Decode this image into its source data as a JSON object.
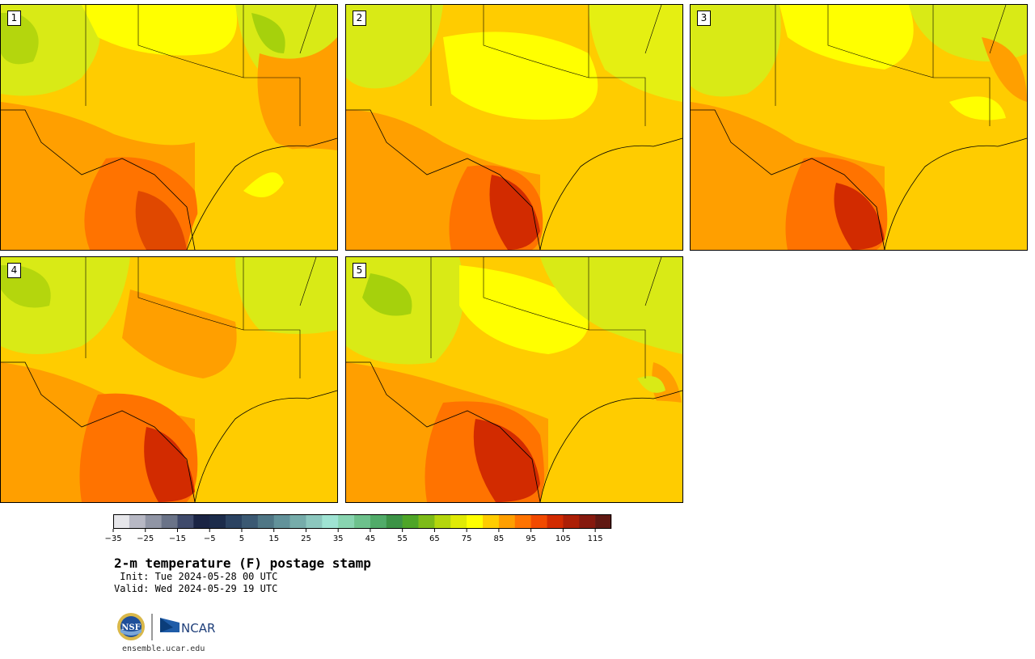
{
  "panels": [
    {
      "label": "1"
    },
    {
      "label": "2"
    },
    {
      "label": "3"
    },
    {
      "label": "4"
    },
    {
      "label": "5"
    }
  ],
  "colorbar": {
    "colors": [
      "#e6e6ea",
      "#b7b8c4",
      "#9095a5",
      "#6a7388",
      "#3f4a6b",
      "#1a2444",
      "#1c2c4b",
      "#2b4362",
      "#3b5973",
      "#4f7685",
      "#62929a",
      "#76acaa",
      "#8cc7be",
      "#9fe3d3",
      "#88d4b0",
      "#6dc18c",
      "#51ab69",
      "#3c9346",
      "#4ea528",
      "#7dbb18",
      "#b4d60d",
      "#e0ea05",
      "#ffff00",
      "#ffcc00",
      "#ff9f00",
      "#ff7300",
      "#f24a00",
      "#d22b00",
      "#ac1f06",
      "#86190e",
      "#601812"
    ],
    "min": -35,
    "max": 120,
    "step": 5,
    "tick_labels": [
      "−35",
      "−25",
      "−15",
      "−5",
      "5",
      "15",
      "25",
      "35",
      "45",
      "55",
      "65",
      "75",
      "85",
      "95",
      "105",
      "115"
    ]
  },
  "title": "2-m temperature (F) postage stamp",
  "init": " Init: Tue 2024-05-28 00 UTC",
  "valid": "Valid: Wed 2024-05-29 19 UTC",
  "logos": {
    "nsf_text": "NSF",
    "ncar_text": "NCAR"
  },
  "url": "ensemble.ucar.edu"
}
